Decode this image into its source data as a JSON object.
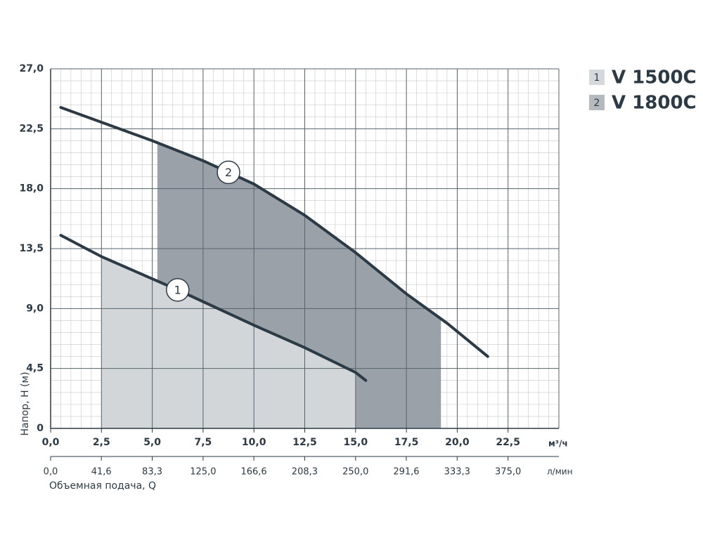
{
  "chart_data": {
    "type": "line",
    "y_label": "Напор, H (м)",
    "x_label": "Объемная подача, Q",
    "x_unit": "м³/ч",
    "x2_unit": "л/мин",
    "xlim": [
      0,
      25
    ],
    "xticks": [
      {
        "value": 0,
        "label": "0,0"
      },
      {
        "value": 2.5,
        "label": "2,5"
      },
      {
        "value": 5,
        "label": "5,0"
      },
      {
        "value": 7.5,
        "label": "7,5"
      },
      {
        "value": 10,
        "label": "10,0"
      },
      {
        "value": 12.5,
        "label": "12,5"
      },
      {
        "value": 15,
        "label": "15,0"
      },
      {
        "value": 17.5,
        "label": "17,5"
      },
      {
        "value": 20,
        "label": "20,0"
      },
      {
        "value": 22.5,
        "label": "22,5"
      }
    ],
    "x2lim": [
      0,
      416.7
    ],
    "x2ticks": [
      {
        "value": 0,
        "label": "0,0"
      },
      {
        "value": 41.6,
        "label": "41,6"
      },
      {
        "value": 83.3,
        "label": "83,3"
      },
      {
        "value": 125,
        "label": "125,0"
      },
      {
        "value": 166.6,
        "label": "166,6"
      },
      {
        "value": 208.3,
        "label": "208,3"
      },
      {
        "value": 250,
        "label": "250,0"
      },
      {
        "value": 291.6,
        "label": "291,6"
      },
      {
        "value": 333.3,
        "label": "333,3"
      },
      {
        "value": 375,
        "label": "375,0"
      }
    ],
    "ylim": [
      0,
      27
    ],
    "yticks": [
      0,
      {
        "value": 4.5,
        "label": "4,5"
      },
      {
        "value": 9,
        "label": "9,0"
      },
      {
        "value": 13.5,
        "label": "13,5"
      },
      {
        "value": 18,
        "label": "18,0"
      },
      {
        "value": 22.5,
        "label": "22,5"
      },
      {
        "value": 27,
        "label": "27,0"
      }
    ],
    "grid": true,
    "minor_grid": 5,
    "series": [
      {
        "name": "V 1500C",
        "label": "1",
        "color": "#2b3a44",
        "range_color": "#d3d6d9",
        "legend_color": "#d6d9dc",
        "x": [
          0.5,
          2.5,
          6.25,
          10,
          12.5,
          15,
          15.5
        ],
        "values": [
          14.5,
          12.9,
          10.4,
          7.75,
          6.06,
          4.2,
          3.6
        ],
        "range": [
          2.5,
          15
        ],
        "label_x": 6.25
      },
      {
        "name": "V 1800C",
        "label": "2",
        "color": "#2b3a44",
        "range_color": "#9ba1a8",
        "legend_color": "#b5babf",
        "x": [
          0.5,
          5,
          7.5,
          10,
          12.5,
          15,
          17.5,
          19.5,
          21.5
        ],
        "values": [
          24.1,
          21.6,
          20.1,
          18.35,
          16.0,
          13.2,
          10.1,
          7.9,
          5.4
        ],
        "range": [
          5.25,
          19.2
        ],
        "label_x": 8.75
      }
    ]
  }
}
